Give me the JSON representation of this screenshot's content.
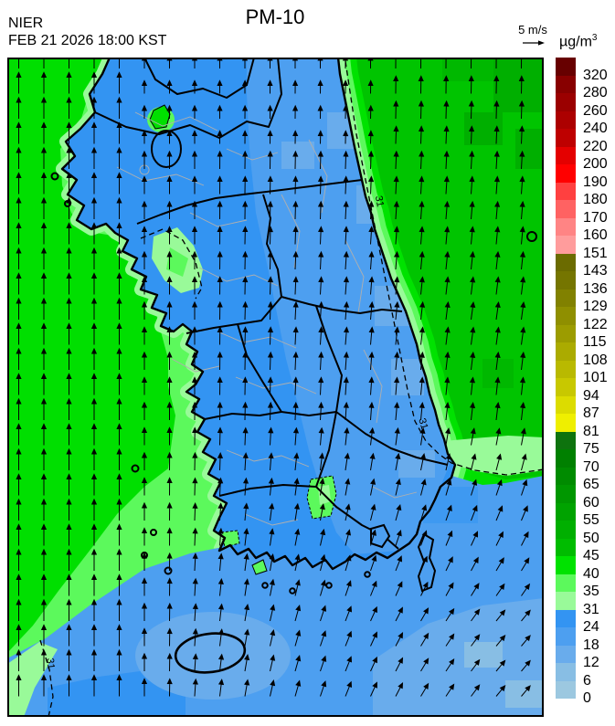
{
  "header": {
    "agency": "NIER",
    "datetime": "FEB 21 2026 18:00 KST",
    "title": "PM-10"
  },
  "wind": {
    "ref_label": "5 m/s",
    "grid_spacing": 27.5,
    "base_angle_deg": 90,
    "max_tilt_deg": 40,
    "arrow_color": "#000000"
  },
  "units": {
    "base": "µg/m",
    "sup": "3"
  },
  "map": {
    "contour_label": "31",
    "border_color": "#000000"
  },
  "colorbar": {
    "segments": [
      {
        "color": "#670000",
        "label": "320"
      },
      {
        "color": "#880000",
        "label": "280"
      },
      {
        "color": "#9B0000",
        "label": "260"
      },
      {
        "color": "#AC0000",
        "label": "240"
      },
      {
        "color": "#BE0000",
        "label": "220"
      },
      {
        "color": "#E40000",
        "label": "200"
      },
      {
        "color": "#FF0000",
        "label": "190"
      },
      {
        "color": "#FF4040",
        "label": "180"
      },
      {
        "color": "#FF6262",
        "label": "170"
      },
      {
        "color": "#FF8484",
        "label": "160"
      },
      {
        "color": "#FF9C9C",
        "label": "151"
      },
      {
        "color": "#6B6B00",
        "label": "143"
      },
      {
        "color": "#757500",
        "label": "136"
      },
      {
        "color": "#818100",
        "label": "129"
      },
      {
        "color": "#8F8F00",
        "label": "122"
      },
      {
        "color": "#9C9C00",
        "label": "115"
      },
      {
        "color": "#ABAB00",
        "label": "108"
      },
      {
        "color": "#B9B900",
        "label": "101"
      },
      {
        "color": "#C8C800",
        "label": "94"
      },
      {
        "color": "#DCDC00",
        "label": "87"
      },
      {
        "color": "#EFEF00",
        "label": "81"
      },
      {
        "color": "#0E730E",
        "label": "75"
      },
      {
        "color": "#008000",
        "label": "70"
      },
      {
        "color": "#008B00",
        "label": "65"
      },
      {
        "color": "#009700",
        "label": "60"
      },
      {
        "color": "#00A300",
        "label": "55"
      },
      {
        "color": "#00AF00",
        "label": "50"
      },
      {
        "color": "#00BC00",
        "label": "45"
      },
      {
        "color": "#00E200",
        "label": "40"
      },
      {
        "color": "#5CF95C",
        "label": "35"
      },
      {
        "color": "#99FA99",
        "label": "31"
      },
      {
        "color": "#3394F2",
        "label": "24"
      },
      {
        "color": "#4D9FF0",
        "label": "18"
      },
      {
        "color": "#69ACEC",
        "label": "12"
      },
      {
        "color": "#88BEE4",
        "label": "6"
      },
      {
        "color": "#9CC8E0",
        "label": "0"
      }
    ]
  },
  "chart_data": {
    "type": "filled-contour-map",
    "variable": "PM-10",
    "units": "µg/m3",
    "agency": "NIER",
    "valid_time": "FEB 21 2026 18:00 KST",
    "wind_reference": "5 m/s",
    "levels": [
      0,
      6,
      12,
      18,
      24,
      31,
      35,
      40,
      45,
      50,
      55,
      60,
      65,
      70,
      75,
      81,
      87,
      94,
      101,
      108,
      115,
      122,
      129,
      136,
      143,
      151,
      160,
      170,
      180,
      190,
      200,
      220,
      240,
      260,
      280,
      320
    ],
    "palette_bottom_to_top": [
      "#9CC8E0",
      "#88BEE4",
      "#69ACEC",
      "#4D9FF0",
      "#3394F2",
      "#99FA99",
      "#5CF95C",
      "#00E200",
      "#00BC00",
      "#00AF00",
      "#00A300",
      "#009700",
      "#008B00",
      "#008000",
      "#0E730E",
      "#EFEF00",
      "#DCDC00",
      "#C8C800",
      "#B9B900",
      "#ABAB00",
      "#9C9C00",
      "#8F8F00",
      "#818100",
      "#757500",
      "#6B6B00",
      "#FF9C9C",
      "#FF8484",
      "#FF6262",
      "#FF4040",
      "#FF0000",
      "#E40000",
      "#BE0000",
      "#AC0000",
      "#9B0000",
      "#880000",
      "#670000"
    ],
    "labeled_contour_level": 31,
    "region_values": {
      "yellow_sea_west": "40-60 (green), fading to 31-40 near coast",
      "east_sea": "40-55 (green) with 31-40 pale band along coast",
      "korean_peninsula_land": "18-31 (blue) with small 31-45 green spots near Seoul, Incheon coast and south coast",
      "south_sea": "6-24 (light blue)"
    },
    "wind_field": "surface wind arrows pointing N over the Yellow Sea, NNE over land, veering NE in the southeast sea"
  }
}
